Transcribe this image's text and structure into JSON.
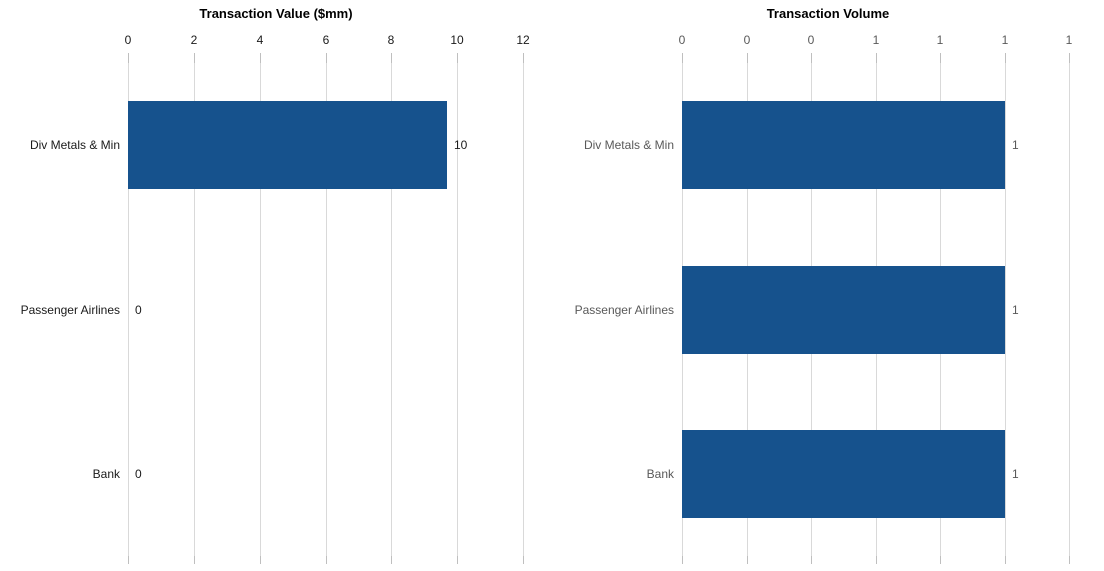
{
  "figure_name": "transaction-summary-charts",
  "colors": {
    "bar": "#16528D",
    "gridline": "#D9D9D9",
    "tick_mark": "#BFBFBF",
    "background": "#FFFFFF",
    "left_chart_text": "#1A1A1A",
    "right_chart_text": "#595959",
    "title_text": "#000000"
  },
  "chart_data": [
    {
      "type": "bar",
      "orientation": "horizontal",
      "title": "Transaction Value ($mm)",
      "categories": [
        "Div Metals & Min",
        "Passenger Airlines",
        "Bank"
      ],
      "values": [
        9.7,
        0,
        0
      ],
      "value_labels": [
        "10",
        "0",
        "0"
      ],
      "axis": {
        "position": "top",
        "min": 0,
        "max": 12,
        "tick_values": [
          0,
          2,
          4,
          6,
          8,
          10,
          12
        ],
        "tick_labels": [
          "0",
          "2",
          "4",
          "6",
          "8",
          "10",
          "12"
        ]
      },
      "legend": "none",
      "grid": "vertical",
      "text_color": "#1A1A1A",
      "title_color": "#000000"
    },
    {
      "type": "bar",
      "orientation": "horizontal",
      "title": "Transaction Volume",
      "categories": [
        "Div Metals & Min",
        "Passenger Airlines",
        "Bank"
      ],
      "values": [
        1,
        1,
        1
      ],
      "value_labels": [
        "1",
        "1",
        "1"
      ],
      "axis": {
        "position": "top",
        "min": 0,
        "max": 1.2,
        "tick_values": [
          0,
          0.2,
          0.4,
          0.6,
          0.8,
          1,
          1.2
        ],
        "tick_labels": [
          "0",
          "0",
          "0",
          "1",
          "1",
          "1",
          "1"
        ]
      },
      "legend": "none",
      "grid": "vertical",
      "text_color": "#595959",
      "title_color": "#000000"
    }
  ]
}
